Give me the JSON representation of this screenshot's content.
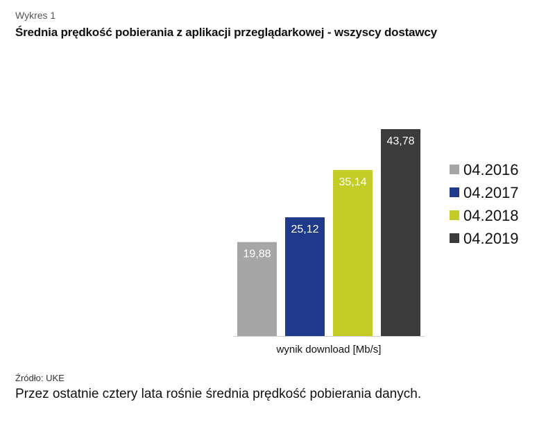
{
  "header": {
    "figure_label": "Wykres 1",
    "title": "Średnia prędkość pobierania z aplikacji przeglądarkowej - wszyscy dostawcy"
  },
  "footer": {
    "source": "Źródło: UKE",
    "caption": "Przez ostatnie cztery lata rośnie średnia prędkość pobierania danych."
  },
  "chart_data": {
    "type": "bar",
    "title": "Średnia prędkość pobierania z aplikacji przeglądarkowej - wszyscy dostawcy",
    "xlabel": "wynik download [Mb/s]",
    "ylabel": "",
    "ylim": [
      0,
      43.78
    ],
    "grid": false,
    "legend_position": "right",
    "categories": [
      "wynik download [Mb/s]"
    ],
    "series": [
      {
        "name": "04.2016",
        "values": [
          19.88
        ],
        "label": "19,88",
        "color": "#a6a6a6"
      },
      {
        "name": "04.2017",
        "values": [
          25.12
        ],
        "label": "25,12",
        "color": "#1f3a8a"
      },
      {
        "name": "04.2018",
        "values": [
          35.14
        ],
        "label": "35,14",
        "color": "#c4cd26"
      },
      {
        "name": "04.2019",
        "values": [
          43.78
        ],
        "label": "43,78",
        "color": "#3b3b3b"
      }
    ]
  }
}
